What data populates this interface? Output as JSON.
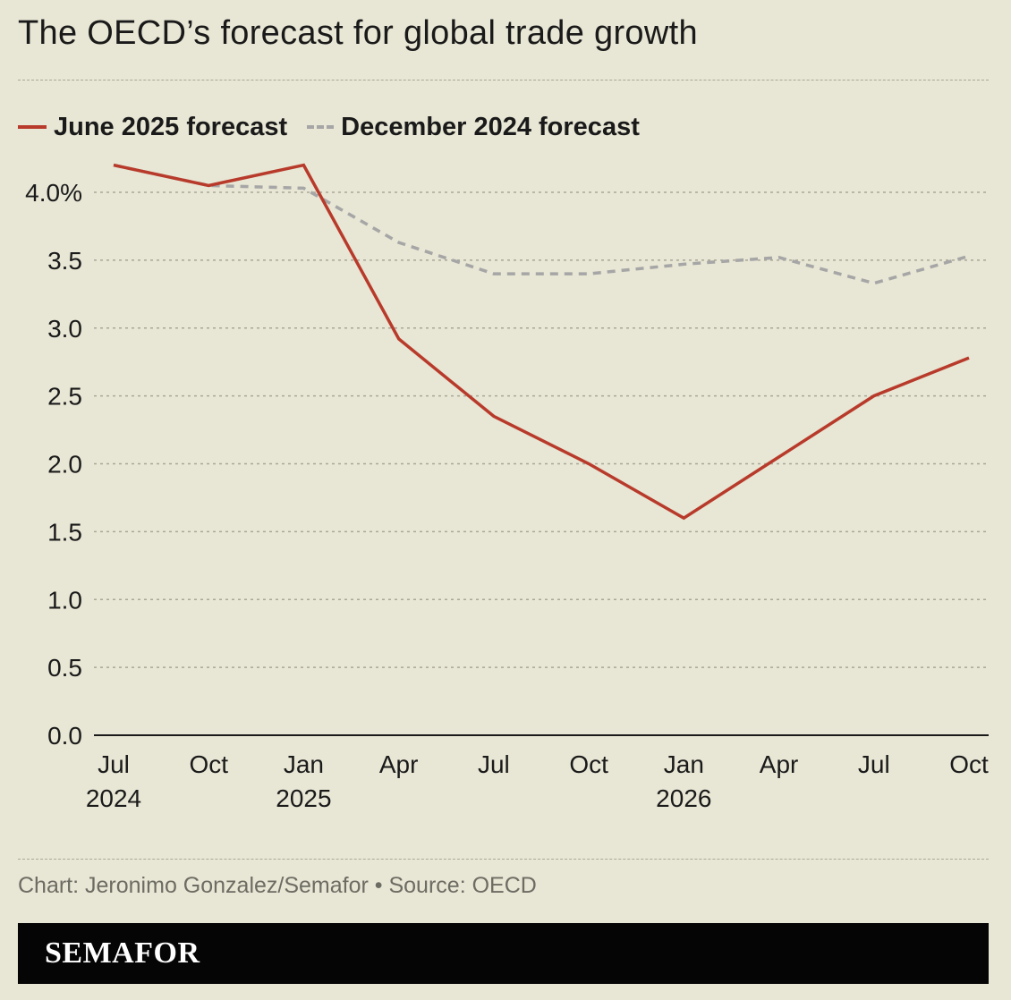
{
  "title": "The OECD’s forecast for global trade growth",
  "legend": {
    "june": "June 2025 forecast",
    "december": "December 2024 forecast"
  },
  "credit": "Chart: Jeronimo Gonzalez/Semafor • Source: OECD",
  "brand": "SEMAFOR",
  "colors": {
    "background": "#e8e6d4",
    "june_line": "#b83a2b",
    "december_line": "#a6a6a6",
    "grid": "#a9a797",
    "brand_bar": "#050505"
  },
  "chart_data": {
    "type": "line",
    "x": [
      "Jul 2024",
      "Oct 2024",
      "Jan 2025",
      "Apr 2025",
      "Jul 2025",
      "Oct 2025",
      "Jan 2026",
      "Apr 2026",
      "Jul 2026",
      "Oct 2026"
    ],
    "tick_labels": [
      {
        "month": "Jul",
        "year": "2024"
      },
      {
        "month": "Oct",
        "year": ""
      },
      {
        "month": "Jan",
        "year": "2025"
      },
      {
        "month": "Apr",
        "year": ""
      },
      {
        "month": "Jul",
        "year": ""
      },
      {
        "month": "Oct",
        "year": ""
      },
      {
        "month": "Jan",
        "year": "2026"
      },
      {
        "month": "Apr",
        "year": ""
      },
      {
        "month": "Jul",
        "year": ""
      },
      {
        "month": "Oct",
        "year": ""
      }
    ],
    "y_ticks": [
      "0.0",
      "0.5",
      "1.0",
      "1.5",
      "2.0",
      "2.5",
      "3.0",
      "3.5",
      "4.0%"
    ],
    "y_tick_values": [
      0,
      0.5,
      1.0,
      1.5,
      2.0,
      2.5,
      3.0,
      3.5,
      4.0
    ],
    "ylim": [
      0,
      4.0
    ],
    "grid": true,
    "legend_position": "top-left",
    "series": [
      {
        "name": "June 2025 forecast",
        "style": "solid",
        "values": [
          4.2,
          4.05,
          4.2,
          2.92,
          2.35,
          2.0,
          1.6,
          2.05,
          2.5,
          2.78
        ]
      },
      {
        "name": "December 2024 forecast",
        "style": "dashed",
        "values": [
          4.2,
          4.05,
          4.03,
          3.63,
          3.4,
          3.4,
          3.47,
          3.52,
          3.33,
          3.53
        ]
      }
    ]
  }
}
